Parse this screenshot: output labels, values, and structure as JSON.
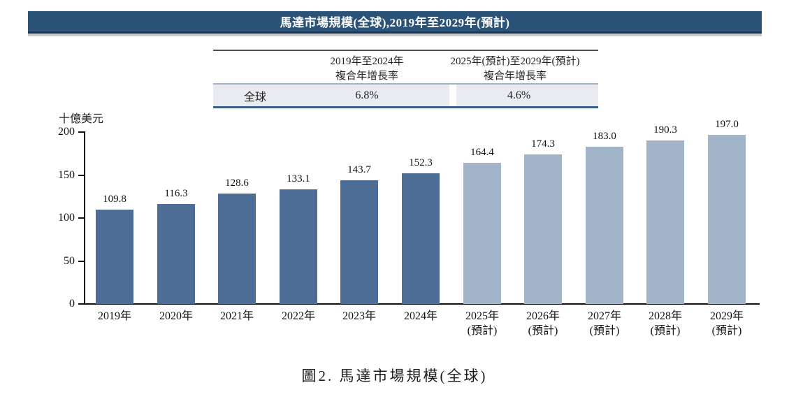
{
  "banner": {
    "title": "馬達市場規模(全球),2019年至2029年(預計)"
  },
  "table": {
    "headers": [
      {
        "line1": "2019年至2024年",
        "line2": "複合年增長率"
      },
      {
        "line1": "2025年(預計)至2029年(預計)",
        "line2": "複合年增長率"
      }
    ],
    "row": {
      "label": "全球",
      "cagr_2019_2024": "6.8%",
      "cagr_2025_2029": "4.6%"
    }
  },
  "chart_data": {
    "type": "bar",
    "title": "馬達市場規模(全球),2019年至2029年(預計)",
    "ylabel": "十億美元",
    "xlabel": "",
    "ylim": [
      0,
      200
    ],
    "yticks": [
      0,
      50,
      100,
      150,
      200
    ],
    "grid": false,
    "legend": "none",
    "categories": [
      {
        "label": "2019年",
        "sublabel": ""
      },
      {
        "label": "2020年",
        "sublabel": ""
      },
      {
        "label": "2021年",
        "sublabel": ""
      },
      {
        "label": "2022年",
        "sublabel": ""
      },
      {
        "label": "2023年",
        "sublabel": ""
      },
      {
        "label": "2024年",
        "sublabel": ""
      },
      {
        "label": "2025年",
        "sublabel": "(預計)"
      },
      {
        "label": "2026年",
        "sublabel": "(預計)"
      },
      {
        "label": "2027年",
        "sublabel": "(預計)"
      },
      {
        "label": "2028年",
        "sublabel": "(預計)"
      },
      {
        "label": "2029年",
        "sublabel": "(預計)"
      }
    ],
    "values": [
      109.8,
      116.3,
      128.6,
      133.1,
      143.7,
      152.3,
      164.4,
      174.3,
      183.0,
      190.3,
      197.0
    ],
    "value_labels": [
      "109.8",
      "116.3",
      "128.6",
      "133.1",
      "143.7",
      "152.3",
      "164.4",
      "174.3",
      "183.0",
      "190.3",
      "197.0"
    ],
    "forecast_start_index": 6,
    "colors": {
      "historical_bar": "#4D6D97",
      "forecast_bar": "#A2B4C9",
      "banner_background": "#2B5377",
      "table_row_background": "#E9EBF1"
    }
  },
  "caption": "圖2. 馬達市場規模(全球)"
}
